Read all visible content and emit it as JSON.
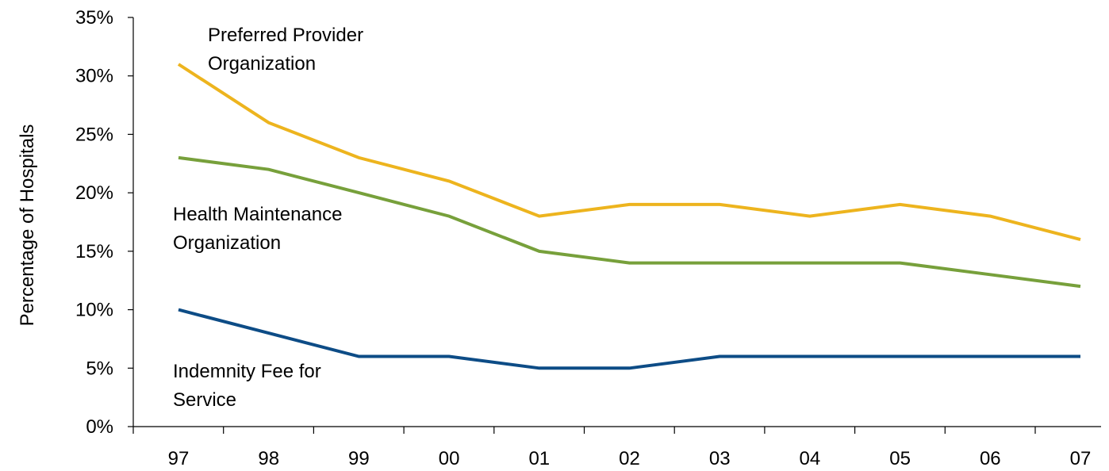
{
  "chart_data": {
    "type": "line",
    "title": "",
    "xlabel": "",
    "ylabel": "Percentage of Hospitals",
    "categories": [
      "97",
      "98",
      "99",
      "00",
      "01",
      "02",
      "03",
      "04",
      "05",
      "06",
      "07"
    ],
    "ylim": [
      0,
      35
    ],
    "yticks": [
      0,
      5,
      10,
      15,
      20,
      25,
      30,
      35
    ],
    "ytick_labels": [
      "0%",
      "5%",
      "10%",
      "15%",
      "20%",
      "25%",
      "30%",
      "35%"
    ],
    "grid": false,
    "legend": "none",
    "series": [
      {
        "name": "Preferred Provider Organization",
        "label_lines": [
          "Preferred Provider",
          "Organization"
        ],
        "color": "#EDB41E",
        "values": [
          31,
          26,
          23,
          21,
          18,
          19,
          19,
          18,
          19,
          18,
          16
        ]
      },
      {
        "name": "Health Maintenance Organization",
        "label_lines": [
          "Health Maintenance",
          "Organization"
        ],
        "color": "#77A03B",
        "values": [
          23,
          22,
          20,
          18,
          15,
          14,
          14,
          14,
          14,
          13,
          12
        ]
      },
      {
        "name": "Indemnity Fee for Service",
        "label_lines": [
          "Indemnity Fee for",
          "Service"
        ],
        "color": "#0D4C86",
        "values": [
          10,
          8,
          6,
          6,
          5,
          5,
          6,
          6,
          6,
          6,
          6
        ]
      }
    ]
  }
}
